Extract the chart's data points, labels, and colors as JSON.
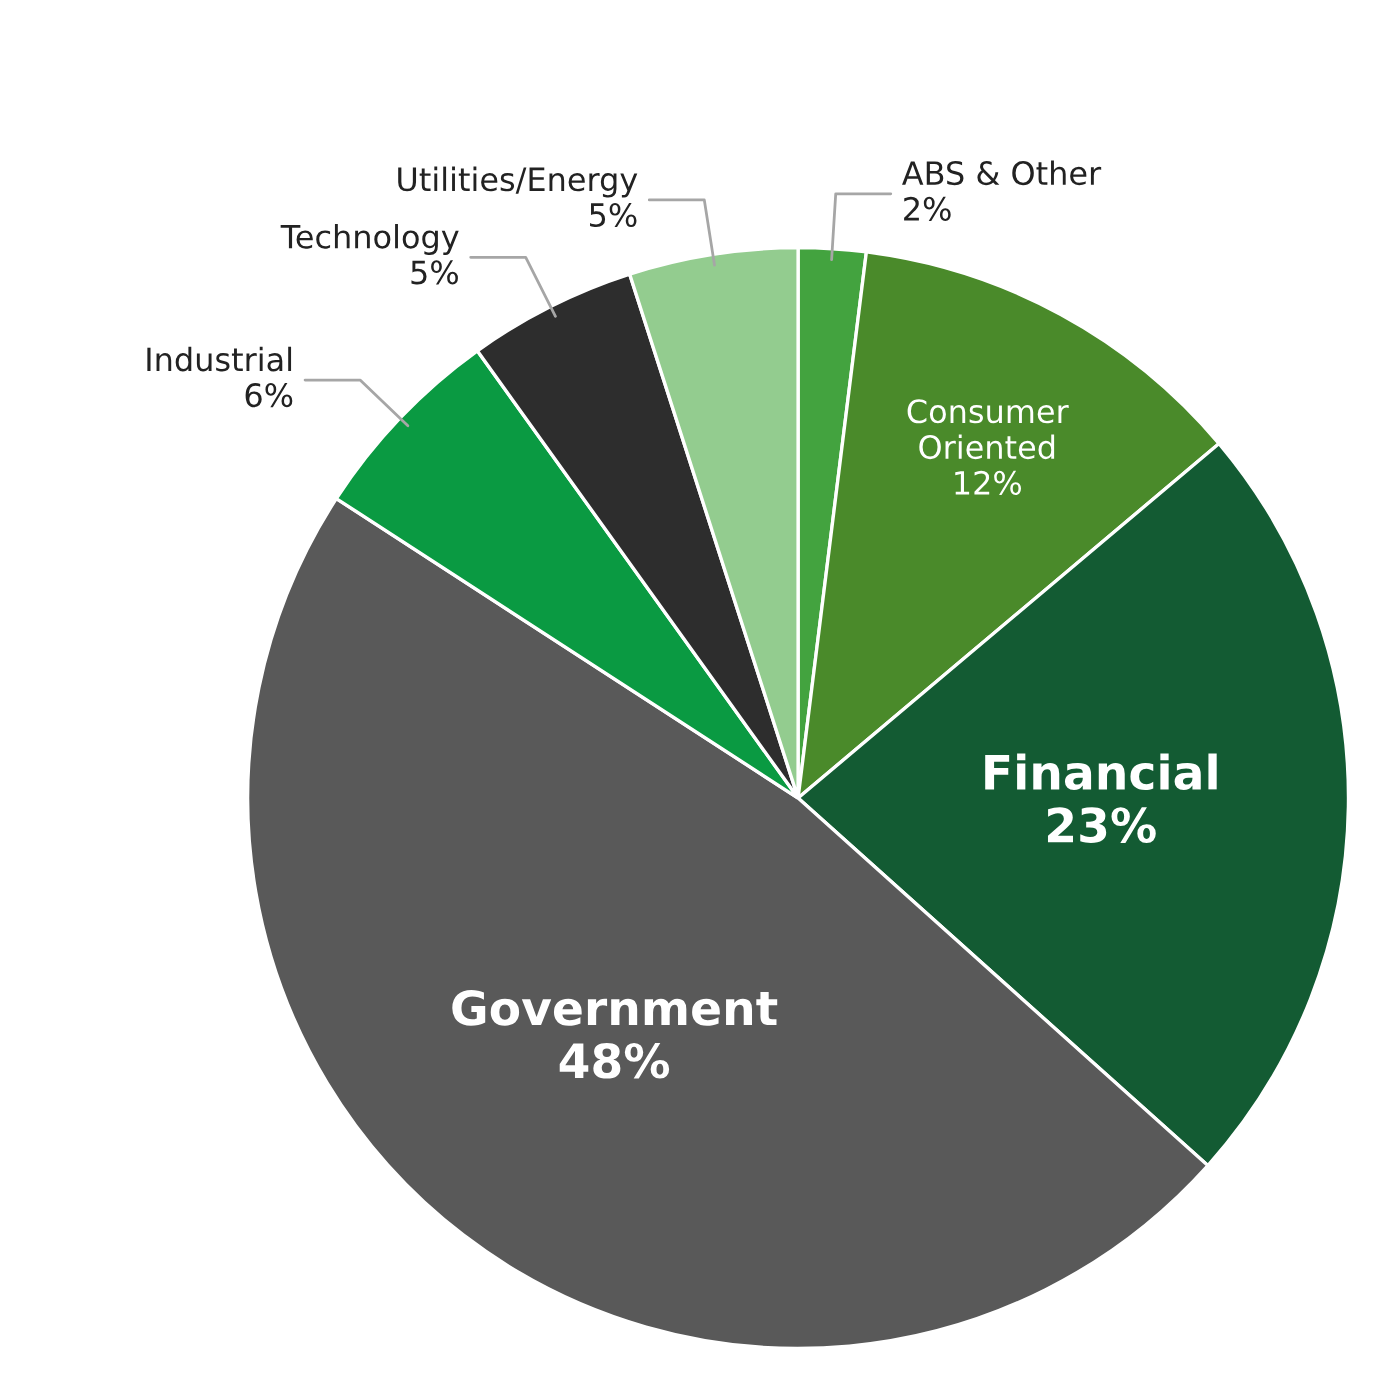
{
  "chart_data": {
    "type": "pie",
    "categories": [
      "ABS & Other",
      "Consumer Oriented",
      "Financial",
      "Government",
      "Industrial",
      "Technology",
      "Utilities/Energy"
    ],
    "values": [
      2,
      12,
      23,
      48,
      6,
      5,
      5
    ],
    "value_labels": [
      "2%",
      "12%",
      "23%",
      "48%",
      "6%",
      "5%",
      "5%"
    ],
    "colors": [
      "#43a33f",
      "#4a8a2a",
      "#135b33",
      "#595959",
      "#0a9a42",
      "#2d2d2d",
      "#93cc8f"
    ],
    "legend": false
  }
}
